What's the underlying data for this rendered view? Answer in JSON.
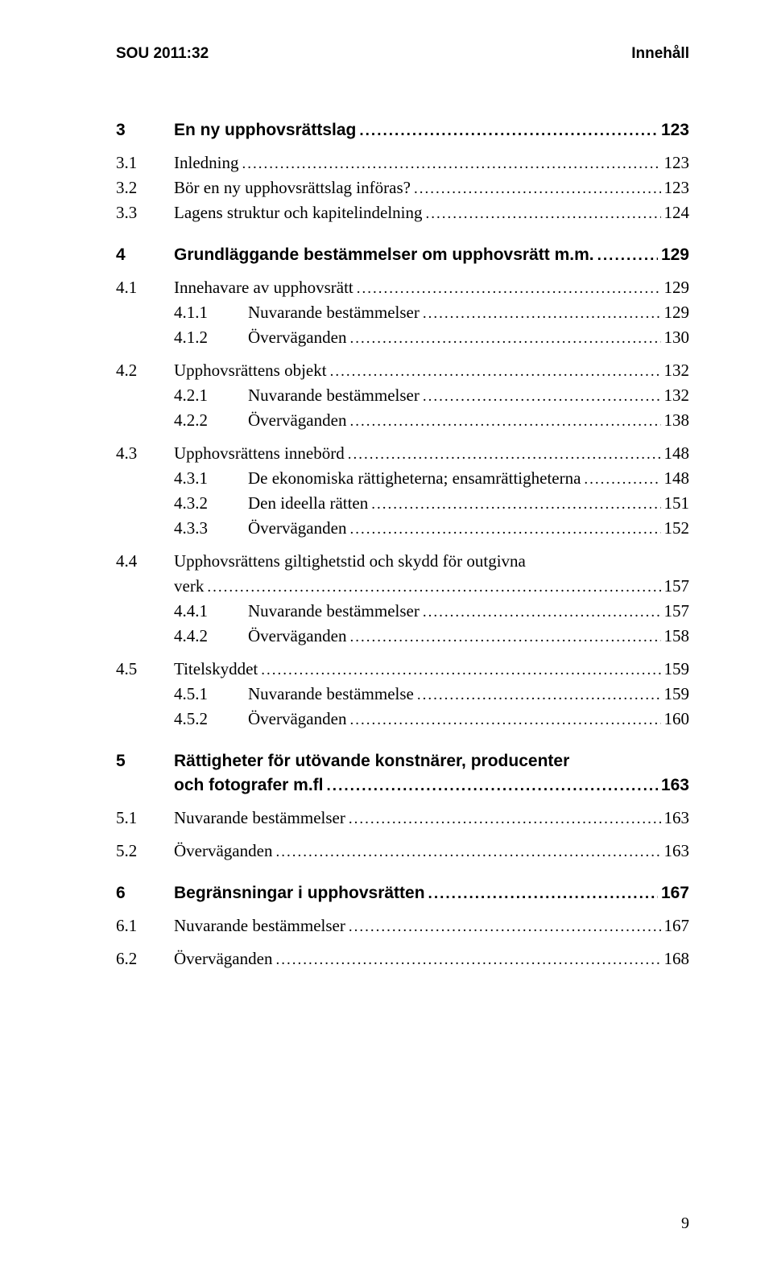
{
  "header": {
    "left": "SOU 2011:32",
    "right": "Innehåll"
  },
  "footer": {
    "page": "9"
  },
  "lines": [
    {
      "type": "chapter",
      "num": "3",
      "label": "En ny upphovsrättslag",
      "page": "123"
    },
    {
      "type": "section",
      "level": 1,
      "num": "3.1",
      "label": "Inledning",
      "page": "123"
    },
    {
      "type": "section",
      "level": 1,
      "num": "3.2",
      "label": "Bör en ny upphovsrättslag införas?",
      "page": "123"
    },
    {
      "type": "section",
      "level": 1,
      "num": "3.3",
      "label": "Lagens struktur och kapitelindelning",
      "page": "124"
    },
    {
      "type": "gap",
      "size": "md"
    },
    {
      "type": "chapter",
      "num": "4",
      "label": "Grundläggande bestämmelser om upphovsrätt m.m. ",
      "page": "129"
    },
    {
      "type": "section",
      "level": 1,
      "num": "4.1",
      "label": "Innehavare av upphovsrätt",
      "page": "129"
    },
    {
      "type": "section",
      "level": 2,
      "num": "4.1.1",
      "label": "Nuvarande bestämmelser",
      "page": "129"
    },
    {
      "type": "section",
      "level": 2,
      "num": "4.1.2",
      "label": "Överväganden",
      "page": "130"
    },
    {
      "type": "gap",
      "size": "sm"
    },
    {
      "type": "section",
      "level": 1,
      "num": "4.2",
      "label": "Upphovsrättens objekt",
      "page": "132"
    },
    {
      "type": "section",
      "level": 2,
      "num": "4.2.1",
      "label": "Nuvarande bestämmelser",
      "page": "132"
    },
    {
      "type": "section",
      "level": 2,
      "num": "4.2.2",
      "label": "Överväganden",
      "page": "138"
    },
    {
      "type": "gap",
      "size": "sm"
    },
    {
      "type": "section",
      "level": 1,
      "num": "4.3",
      "label": "Upphovsrättens innebörd",
      "page": "148"
    },
    {
      "type": "section",
      "level": 2,
      "num": "4.3.1",
      "label": "De ekonomiska rättigheterna; ensamrättigheterna",
      "page": "148"
    },
    {
      "type": "section",
      "level": 2,
      "num": "4.3.2",
      "label": "Den ideella rätten",
      "page": "151"
    },
    {
      "type": "section",
      "level": 2,
      "num": "4.3.3",
      "label": "Överväganden",
      "page": "152"
    },
    {
      "type": "gap",
      "size": "sm"
    },
    {
      "type": "section-wrap",
      "level": 1,
      "num": "4.4",
      "line1": "Upphovsrättens giltighetstid och skydd för outgivna",
      "line2": "verk",
      "page": "157"
    },
    {
      "type": "section",
      "level": 2,
      "num": "4.4.1",
      "label": "Nuvarande bestämmelser",
      "page": "157"
    },
    {
      "type": "section",
      "level": 2,
      "num": "4.4.2",
      "label": "Överväganden",
      "page": "158"
    },
    {
      "type": "gap",
      "size": "sm"
    },
    {
      "type": "section",
      "level": 1,
      "num": "4.5",
      "label": "Titelskyddet",
      "page": "159"
    },
    {
      "type": "section",
      "level": 2,
      "num": "4.5.1",
      "label": "Nuvarande bestämmelse",
      "page": "159"
    },
    {
      "type": "section",
      "level": 2,
      "num": "4.5.2",
      "label": "Överväganden",
      "page": "160"
    },
    {
      "type": "gap",
      "size": "md"
    },
    {
      "type": "chapter-wrap",
      "num": "5",
      "line1": "Rättigheter för utövande konstnärer, producenter",
      "line2": "och fotografer m.fl",
      "page": "163"
    },
    {
      "type": "section",
      "level": 1,
      "num": "5.1",
      "label": "Nuvarande bestämmelser",
      "page": "163"
    },
    {
      "type": "gap",
      "size": "sm"
    },
    {
      "type": "section",
      "level": 1,
      "num": "5.2",
      "label": "Överväganden",
      "page": "163"
    },
    {
      "type": "gap",
      "size": "md"
    },
    {
      "type": "chapter",
      "num": "6",
      "label": "Begränsningar i upphovsrätten",
      "page": "167"
    },
    {
      "type": "section",
      "level": 1,
      "num": "6.1",
      "label": "Nuvarande bestämmelser",
      "page": "167"
    },
    {
      "type": "gap",
      "size": "sm"
    },
    {
      "type": "section",
      "level": 1,
      "num": "6.2",
      "label": "Överväganden",
      "page": "168"
    }
  ]
}
